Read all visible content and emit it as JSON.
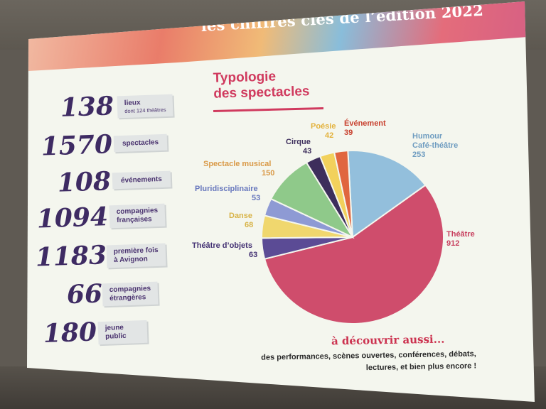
{
  "banner": {
    "title": "les chiffres clés de l’édition 2022"
  },
  "stats": [
    {
      "number": "138",
      "label": "lieux",
      "sublabel": "dont 124 théâtres"
    },
    {
      "number": "1570",
      "label": "spectacles"
    },
    {
      "number": "108",
      "label": "événements"
    },
    {
      "number": "1094",
      "label": "compagnies",
      "label2": "françaises"
    },
    {
      "number": "1183",
      "label": "première fois",
      "label2": "à Avignon"
    },
    {
      "number": "66",
      "label": "compagnies",
      "label2": "étrangères"
    },
    {
      "number": "180",
      "label": "jeune",
      "label2": "public"
    }
  ],
  "pie": {
    "title1": "Typologie",
    "title2": "des spectacles",
    "slices": [
      {
        "name": "Humour Café-théâtre",
        "name1": "Humour",
        "name2": "Café-théâtre",
        "value": "253",
        "color": "#93bfdc",
        "label_color": "#6e9cc0"
      },
      {
        "name": "Théâtre",
        "name1": "Théâtre",
        "value": "912",
        "color": "#cf4d6c",
        "label_color": "#c8405f"
      },
      {
        "name": "Théâtre d’objets",
        "name1": "Théâtre d’objets",
        "value": "63",
        "color": "#5b4b95",
        "label_color": "#433173"
      },
      {
        "name": "Danse",
        "name1": "Danse",
        "value": "68",
        "color": "#f0d76e",
        "label_color": "#d8b449"
      },
      {
        "name": "Pluridisciplinaire",
        "name1": "Pluridisciplinaire",
        "value": "53",
        "color": "#8e9ad4",
        "label_color": "#6878bd"
      },
      {
        "name": "Spectacle musical",
        "name1": "Spectacle musical",
        "value": "150",
        "color": "#8fc98a",
        "label_color": "#d99947"
      },
      {
        "name": "Cirque",
        "name1": "Cirque",
        "value": "43",
        "color": "#3d2e5c",
        "label_color": "#3d2e5c"
      },
      {
        "name": "Poésie",
        "name1": "Poésie",
        "value": "42",
        "color": "#f2d15c",
        "label_color": "#e3b23c"
      },
      {
        "name": "Événement",
        "name1": "Événement",
        "value": "39",
        "color": "#e0663f",
        "label_color": "#c8402e"
      }
    ]
  },
  "footer": {
    "aussi": "à découvrir aussi...",
    "line1": "des performances, scènes ouvertes, conférences, débats,",
    "line2": "lectures, et bien plus encore !"
  },
  "chart_data": {
    "type": "pie",
    "title": "Typologie des spectacles",
    "categories": [
      "Humour Café-théâtre",
      "Théâtre",
      "Théâtre d’objets",
      "Danse",
      "Pluridisciplinaire",
      "Spectacle musical",
      "Cirque",
      "Poésie",
      "Événement"
    ],
    "values": [
      253,
      912,
      63,
      68,
      53,
      150,
      43,
      42,
      39
    ]
  }
}
